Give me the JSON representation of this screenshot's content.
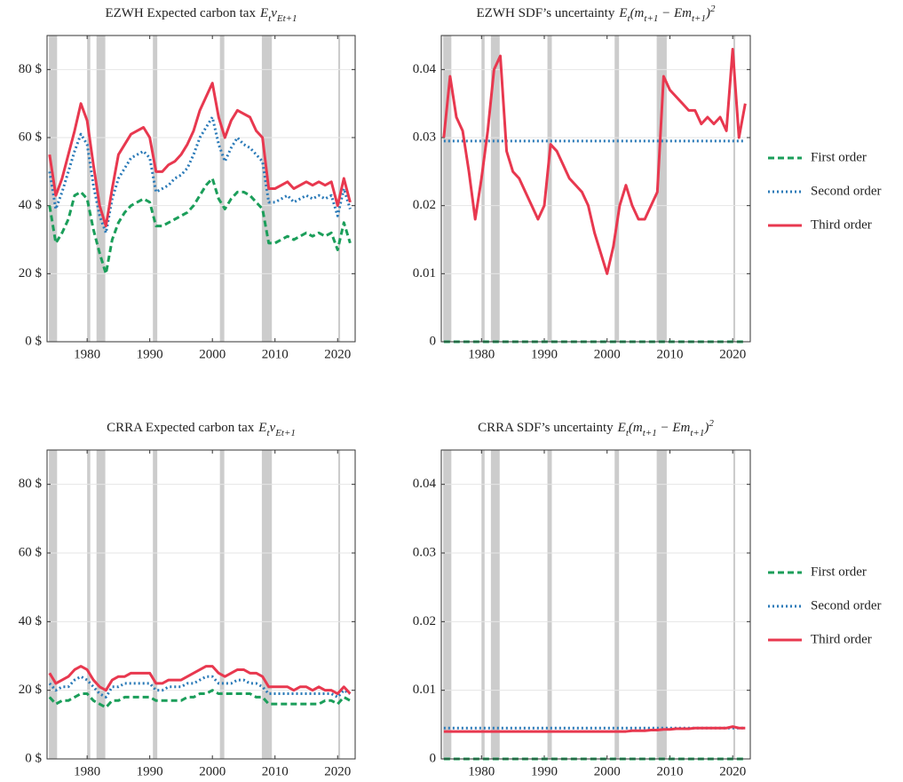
{
  "chart_data": [
    {
      "type": "line",
      "title": "EZWH Expected carbon tax",
      "title_formula": "E_tv_{Et+1}",
      "x": [
        1974,
        1975,
        1976,
        1977,
        1978,
        1979,
        1980,
        1981,
        1982,
        1983,
        1984,
        1985,
        1986,
        1987,
        1988,
        1989,
        1990,
        1991,
        1992,
        1993,
        1994,
        1995,
        1996,
        1997,
        1998,
        1999,
        2000,
        2001,
        2002,
        2003,
        2004,
        2005,
        2006,
        2007,
        2008,
        2009,
        2010,
        2011,
        2012,
        2013,
        2014,
        2015,
        2016,
        2017,
        2018,
        2019,
        2020,
        2021,
        2022
      ],
      "series": [
        {
          "name": "First order",
          "color": "#1b9e5a",
          "dash": "dashed",
          "values": [
            40,
            29,
            32,
            36,
            43,
            44,
            42,
            33,
            26,
            20,
            30,
            35,
            38,
            40,
            41,
            42,
            41,
            34,
            34,
            35,
            36,
            37,
            38,
            40,
            43,
            46,
            48,
            42,
            39,
            42,
            44,
            44,
            43,
            41,
            39,
            29,
            29,
            30,
            31,
            30,
            31,
            32,
            31,
            32,
            31,
            32,
            27,
            35,
            29
          ]
        },
        {
          "name": "Second order",
          "color": "#2a7ab8",
          "dash": "dotted",
          "values": [
            50,
            39,
            44,
            50,
            56,
            61,
            58,
            46,
            37,
            32,
            42,
            48,
            51,
            54,
            55,
            56,
            54,
            44,
            45,
            46,
            48,
            49,
            51,
            55,
            60,
            63,
            66,
            58,
            53,
            57,
            60,
            58,
            57,
            55,
            53,
            41,
            41,
            42,
            43,
            41,
            42,
            43,
            42,
            43,
            42,
            43,
            37,
            45,
            39
          ]
        },
        {
          "name": "Third order",
          "color": "#e8384f",
          "dash": "solid",
          "values": [
            55,
            43,
            48,
            55,
            62,
            70,
            65,
            52,
            40,
            34,
            45,
            55,
            58,
            61,
            62,
            63,
            60,
            50,
            50,
            52,
            53,
            55,
            58,
            62,
            68,
            72,
            76,
            66,
            60,
            65,
            68,
            67,
            66,
            62,
            60,
            45,
            45,
            46,
            47,
            45,
            46,
            47,
            46,
            47,
            46,
            47,
            40,
            48,
            41
          ]
        }
      ],
      "recessions": [
        [
          1973.9,
          1975.2
        ],
        [
          1980.0,
          1980.5
        ],
        [
          1981.5,
          1982.9
        ],
        [
          1990.5,
          1991.2
        ],
        [
          2001.2,
          2001.9
        ],
        [
          2007.9,
          2009.5
        ],
        [
          2020.1,
          2020.4
        ]
      ],
      "xlim": [
        1973.6,
        2022.8
      ],
      "xticks": [
        1980,
        1990,
        2000,
        2010,
        2020
      ],
      "ylim": [
        0,
        90
      ],
      "yticks": [
        {
          "value": 0,
          "label": "0 $"
        },
        {
          "value": 20,
          "label": "20 $"
        },
        {
          "value": 40,
          "label": "40 $"
        },
        {
          "value": 60,
          "label": "60 $"
        },
        {
          "value": 80,
          "label": "80 $"
        }
      ],
      "grid": true
    },
    {
      "type": "line",
      "title": "EZWH SDF’s uncertainty",
      "title_formula": "E_t(m_{t+1} − Em_{t+1})^2",
      "x": [
        1974,
        1975,
        1976,
        1977,
        1978,
        1979,
        1980,
        1981,
        1982,
        1983,
        1984,
        1985,
        1986,
        1987,
        1988,
        1989,
        1990,
        1991,
        1992,
        1993,
        1994,
        1995,
        1996,
        1997,
        1998,
        1999,
        2000,
        2001,
        2002,
        2003,
        2004,
        2005,
        2006,
        2007,
        2008,
        2009,
        2010,
        2011,
        2012,
        2013,
        2014,
        2015,
        2016,
        2017,
        2018,
        2019,
        2020,
        2021,
        2022
      ],
      "series": [
        {
          "name": "First order",
          "color": "#1b9e5a",
          "dash": "dashed",
          "values": [
            0,
            0,
            0,
            0,
            0,
            0,
            0,
            0,
            0,
            0,
            0,
            0,
            0,
            0,
            0,
            0,
            0,
            0,
            0,
            0,
            0,
            0,
            0,
            0,
            0,
            0,
            0,
            0,
            0,
            0,
            0,
            0,
            0,
            0,
            0,
            0,
            0,
            0,
            0,
            0,
            0,
            0,
            0,
            0,
            0,
            0,
            0,
            0,
            0
          ]
        },
        {
          "name": "Second order",
          "color": "#2a7ab8",
          "dash": "dotted",
          "values": [
            0.0295,
            0.0295,
            0.0295,
            0.0295,
            0.0295,
            0.0295,
            0.0295,
            0.0295,
            0.0295,
            0.0295,
            0.0295,
            0.0295,
            0.0295,
            0.0295,
            0.0295,
            0.0295,
            0.0295,
            0.0295,
            0.0295,
            0.0295,
            0.0295,
            0.0295,
            0.0295,
            0.0295,
            0.0295,
            0.0295,
            0.0295,
            0.0295,
            0.0295,
            0.0295,
            0.0295,
            0.0295,
            0.0295,
            0.0295,
            0.0295,
            0.0295,
            0.0295,
            0.0295,
            0.0295,
            0.0295,
            0.0295,
            0.0295,
            0.0295,
            0.0295,
            0.0295,
            0.0295,
            0.0295,
            0.0295,
            0.0295
          ]
        },
        {
          "name": "Third order",
          "color": "#e8384f",
          "dash": "solid",
          "values": [
            0.03,
            0.039,
            0.033,
            0.031,
            0.025,
            0.018,
            0.024,
            0.031,
            0.04,
            0.042,
            0.028,
            0.025,
            0.024,
            0.022,
            0.02,
            0.018,
            0.02,
            0.029,
            0.028,
            0.026,
            0.024,
            0.023,
            0.022,
            0.02,
            0.016,
            0.013,
            0.01,
            0.014,
            0.02,
            0.023,
            0.02,
            0.018,
            0.018,
            0.02,
            0.022,
            0.039,
            0.037,
            0.036,
            0.035,
            0.034,
            0.034,
            0.032,
            0.033,
            0.032,
            0.033,
            0.031,
            0.043,
            0.03,
            0.035
          ]
        }
      ],
      "recessions": [
        [
          1973.9,
          1975.2
        ],
        [
          1980.0,
          1980.5
        ],
        [
          1981.5,
          1982.9
        ],
        [
          1990.5,
          1991.2
        ],
        [
          2001.2,
          2001.9
        ],
        [
          2007.9,
          2009.5
        ],
        [
          2020.1,
          2020.4
        ]
      ],
      "xlim": [
        1973.6,
        2022.8
      ],
      "xticks": [
        1980,
        1990,
        2000,
        2010,
        2020
      ],
      "ylim": [
        0,
        0.045
      ],
      "yticks": [
        0,
        0.01,
        0.02,
        0.03,
        0.04
      ],
      "grid": true,
      "legend": "right"
    },
    {
      "type": "line",
      "title": "CRRA Expected carbon tax",
      "title_formula": "E_tv_{Et+1}",
      "x": [
        1974,
        1975,
        1976,
        1977,
        1978,
        1979,
        1980,
        1981,
        1982,
        1983,
        1984,
        1985,
        1986,
        1987,
        1988,
        1989,
        1990,
        1991,
        1992,
        1993,
        1994,
        1995,
        1996,
        1997,
        1998,
        1999,
        2000,
        2001,
        2002,
        2003,
        2004,
        2005,
        2006,
        2007,
        2008,
        2009,
        2010,
        2011,
        2012,
        2013,
        2014,
        2015,
        2016,
        2017,
        2018,
        2019,
        2020,
        2021,
        2022
      ],
      "series": [
        {
          "name": "First order",
          "color": "#1b9e5a",
          "dash": "dashed",
          "values": [
            18,
            16,
            17,
            17,
            18,
            19,
            19,
            17,
            16,
            15,
            17,
            17,
            18,
            18,
            18,
            18,
            18,
            17,
            17,
            17,
            17,
            17,
            18,
            18,
            19,
            19,
            20,
            19,
            19,
            19,
            19,
            19,
            19,
            18,
            18,
            16,
            16,
            16,
            16,
            16,
            16,
            16,
            16,
            16,
            17,
            17,
            16,
            18,
            17
          ]
        },
        {
          "name": "Second order",
          "color": "#2a7ab8",
          "dash": "dotted",
          "values": [
            22,
            20,
            21,
            21,
            23,
            24,
            23,
            21,
            19,
            18,
            21,
            21,
            22,
            22,
            22,
            22,
            22,
            20,
            20,
            21,
            21,
            21,
            22,
            22,
            23,
            24,
            24,
            22,
            22,
            22,
            23,
            23,
            22,
            22,
            21,
            19,
            19,
            19,
            19,
            19,
            19,
            19,
            19,
            19,
            19,
            19,
            18,
            20,
            19
          ]
        },
        {
          "name": "Third order",
          "color": "#e8384f",
          "dash": "solid",
          "values": [
            25,
            22,
            23,
            24,
            26,
            27,
            26,
            23,
            21,
            20,
            23,
            24,
            24,
            25,
            25,
            25,
            25,
            22,
            22,
            23,
            23,
            23,
            24,
            25,
            26,
            27,
            27,
            25,
            24,
            25,
            26,
            26,
            25,
            25,
            24,
            21,
            21,
            21,
            21,
            20,
            21,
            21,
            20,
            21,
            20,
            20,
            19,
            21,
            19
          ]
        }
      ],
      "recessions": [
        [
          1973.9,
          1975.2
        ],
        [
          1980.0,
          1980.5
        ],
        [
          1981.5,
          1982.9
        ],
        [
          1990.5,
          1991.2
        ],
        [
          2001.2,
          2001.9
        ],
        [
          2007.9,
          2009.5
        ],
        [
          2020.1,
          2020.4
        ]
      ],
      "xlim": [
        1973.6,
        2022.8
      ],
      "xticks": [
        1980,
        1990,
        2000,
        2010,
        2020
      ],
      "ylim": [
        0,
        90
      ],
      "yticks": [
        {
          "value": 0,
          "label": "0 $"
        },
        {
          "value": 20,
          "label": "20 $"
        },
        {
          "value": 40,
          "label": "40 $"
        },
        {
          "value": 60,
          "label": "60 $"
        },
        {
          "value": 80,
          "label": "80 $"
        }
      ],
      "grid": true
    },
    {
      "type": "line",
      "title": "CRRA SDF’s uncertainty",
      "title_formula": "E_t(m_{t+1} − Em_{t+1})^2",
      "x": [
        1974,
        1975,
        1976,
        1977,
        1978,
        1979,
        1980,
        1981,
        1982,
        1983,
        1984,
        1985,
        1986,
        1987,
        1988,
        1989,
        1990,
        1991,
        1992,
        1993,
        1994,
        1995,
        1996,
        1997,
        1998,
        1999,
        2000,
        2001,
        2002,
        2003,
        2004,
        2005,
        2006,
        2007,
        2008,
        2009,
        2010,
        2011,
        2012,
        2013,
        2014,
        2015,
        2016,
        2017,
        2018,
        2019,
        2020,
        2021,
        2022
      ],
      "series": [
        {
          "name": "First order",
          "color": "#1b9e5a",
          "dash": "dashed",
          "values": [
            0,
            0,
            0,
            0,
            0,
            0,
            0,
            0,
            0,
            0,
            0,
            0,
            0,
            0,
            0,
            0,
            0,
            0,
            0,
            0,
            0,
            0,
            0,
            0,
            0,
            0,
            0,
            0,
            0,
            0,
            0,
            0,
            0,
            0,
            0,
            0,
            0,
            0,
            0,
            0,
            0,
            0,
            0,
            0,
            0,
            0,
            0,
            0,
            0
          ]
        },
        {
          "name": "Second order",
          "color": "#2a7ab8",
          "dash": "dotted",
          "values": [
            0.0045,
            0.0045,
            0.0045,
            0.0045,
            0.0045,
            0.0045,
            0.0045,
            0.0045,
            0.0045,
            0.0045,
            0.0045,
            0.0045,
            0.0045,
            0.0045,
            0.0045,
            0.0045,
            0.0045,
            0.0045,
            0.0045,
            0.0045,
            0.0045,
            0.0045,
            0.0045,
            0.0045,
            0.0045,
            0.0045,
            0.0045,
            0.0045,
            0.0045,
            0.0045,
            0.0045,
            0.0045,
            0.0045,
            0.0045,
            0.0045,
            0.0045,
            0.0045,
            0.0045,
            0.0045,
            0.0045,
            0.0045,
            0.0045,
            0.0045,
            0.0045,
            0.0045,
            0.0045,
            0.0045,
            0.0045,
            0.0045
          ]
        },
        {
          "name": "Third order",
          "color": "#e8384f",
          "dash": "solid",
          "values": [
            0.004,
            0.004,
            0.004,
            0.004,
            0.004,
            0.004,
            0.004,
            0.004,
            0.004,
            0.004,
            0.004,
            0.004,
            0.004,
            0.004,
            0.004,
            0.004,
            0.004,
            0.004,
            0.004,
            0.004,
            0.004,
            0.004,
            0.004,
            0.004,
            0.004,
            0.004,
            0.004,
            0.004,
            0.004,
            0.004,
            0.0041,
            0.0041,
            0.0041,
            0.0042,
            0.0042,
            0.0043,
            0.0043,
            0.0044,
            0.0044,
            0.0044,
            0.0045,
            0.0045,
            0.0045,
            0.0045,
            0.0045,
            0.0045,
            0.0047,
            0.0045,
            0.0045
          ]
        }
      ],
      "recessions": [
        [
          1973.9,
          1975.2
        ],
        [
          1980.0,
          1980.5
        ],
        [
          1981.5,
          1982.9
        ],
        [
          1990.5,
          1991.2
        ],
        [
          2001.2,
          2001.9
        ],
        [
          2007.9,
          2009.5
        ],
        [
          2020.1,
          2020.4
        ]
      ],
      "xlim": [
        1973.6,
        2022.8
      ],
      "xticks": [
        1980,
        1990,
        2000,
        2010,
        2020
      ],
      "ylim": [
        0,
        0.045
      ],
      "yticks": [
        0,
        0.01,
        0.02,
        0.03,
        0.04
      ],
      "grid": true,
      "legend": "right"
    }
  ]
}
